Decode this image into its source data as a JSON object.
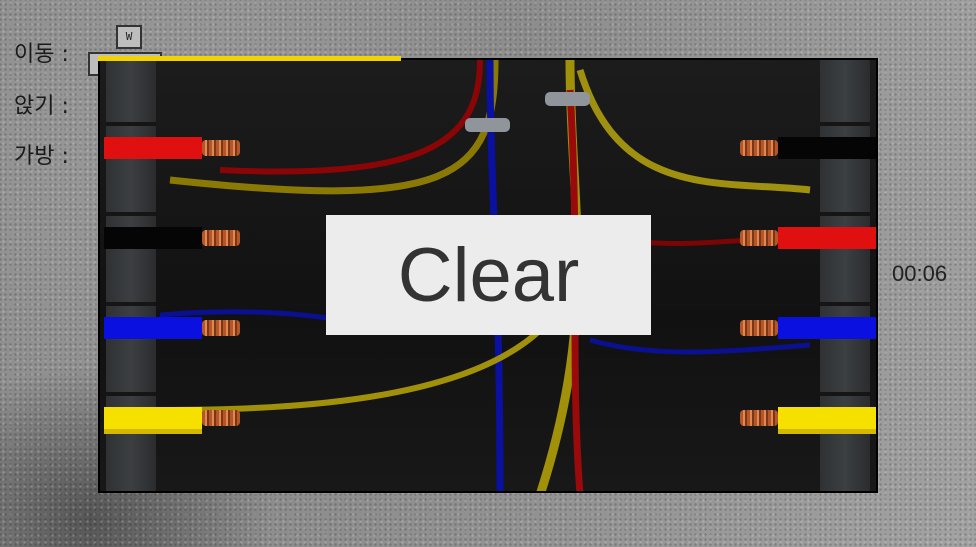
{
  "hud": {
    "move_label": "이동 :",
    "sit_label": "앉기 :",
    "bag_label": "가방 :",
    "key_w": "W"
  },
  "puzzle": {
    "clear_text": "Clear",
    "timer": "00:06",
    "left_wires": [
      "red",
      "black",
      "blue",
      "yellow"
    ],
    "right_wires": [
      "black",
      "red",
      "blue",
      "yellow"
    ],
    "colors": {
      "red": "#e01010",
      "black": "#050505",
      "blue": "#0a10e0",
      "yellow": "#f5e000",
      "progress": "#f2d200"
    }
  }
}
